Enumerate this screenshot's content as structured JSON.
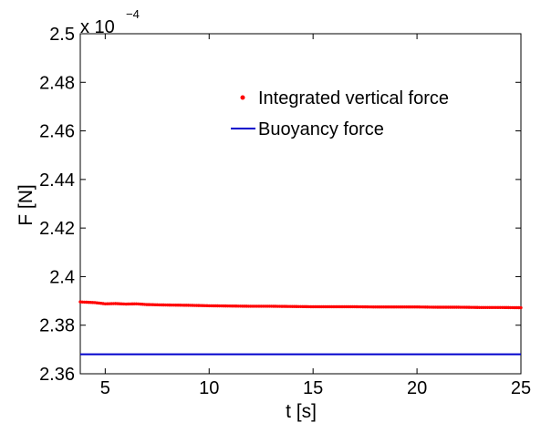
{
  "chart_data": {
    "type": "scatter",
    "title": "",
    "xlabel": "t [s]",
    "ylabel": "F [N]",
    "xlim": [
      3.8,
      25
    ],
    "ylim": [
      2.36,
      2.5
    ],
    "y_multiplier": "x 10",
    "y_exponent": "−4",
    "x_ticks": [
      5,
      10,
      15,
      20,
      25
    ],
    "x_tick_labels": [
      "5",
      "10",
      "15",
      "20",
      "25"
    ],
    "y_ticks": [
      2.36,
      2.38,
      2.4,
      2.42,
      2.44,
      2.46,
      2.48,
      2.5
    ],
    "y_tick_labels": [
      "2.36",
      "2.38",
      "2.4",
      "2.42",
      "2.44",
      "2.46",
      "2.48",
      "2.5"
    ],
    "grid": false,
    "legend_position": "upper-right",
    "series": [
      {
        "name": "Integrated vertical force",
        "kind": "markers",
        "color": "#ff0000",
        "x": [
          3.8,
          4.0,
          4.5,
          5.0,
          5.5,
          6.0,
          6.5,
          7.0,
          8.0,
          9.0,
          10.0,
          11.0,
          12.0,
          13.0,
          14.0,
          15.0,
          16.0,
          17.0,
          18.0,
          19.0,
          20.0,
          21.0,
          22.0,
          23.0,
          24.0,
          25.0
        ],
        "y": [
          2.3896,
          2.3895,
          2.3893,
          2.3888,
          2.3889,
          2.3887,
          2.3888,
          2.3885,
          2.3883,
          2.3882,
          2.388,
          2.3879,
          2.3878,
          2.3878,
          2.3877,
          2.3876,
          2.3876,
          2.3876,
          2.3875,
          2.3875,
          2.3875,
          2.3874,
          2.3874,
          2.3873,
          2.3873,
          2.3872
        ]
      },
      {
        "name": "Buoyancy force",
        "kind": "line",
        "color": "#0000cc",
        "x": [
          3.8,
          25.0
        ],
        "y": [
          2.368,
          2.368
        ]
      }
    ]
  }
}
